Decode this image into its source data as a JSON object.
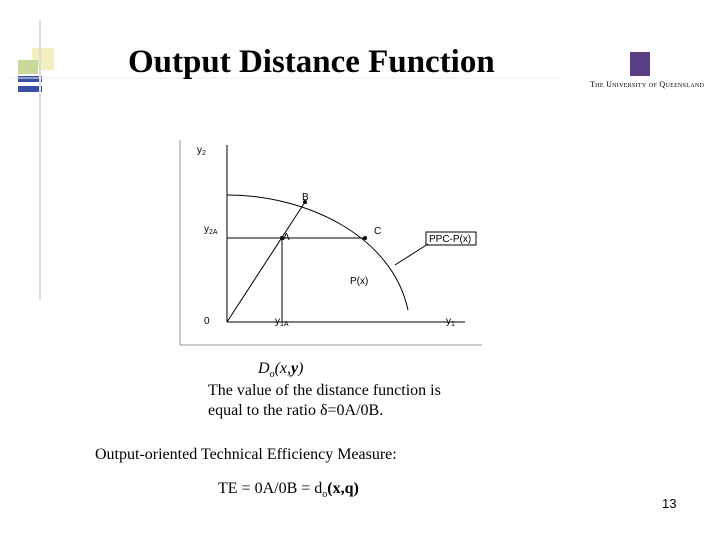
{
  "header": {
    "title": "Output Distance Function",
    "logo": "The University of Queensland"
  },
  "diagram": {
    "y_axis": {
      "base": "y",
      "sub": "2"
    },
    "x_axis": {
      "base": "y",
      "sub": "1"
    },
    "origin": "0",
    "point_b": "B",
    "point_a": "A",
    "point_c": "C",
    "y2a": {
      "base": "y",
      "sub": "2A"
    },
    "y1a": {
      "base": "y",
      "sub": "1A"
    },
    "ppc_label": "PPC-P(x)",
    "set_label": "P(x)"
  },
  "caption": {
    "function": {
      "base": "D",
      "sub": "o",
      "open": "(x,",
      "bold": "y",
      "close": ")"
    },
    "line1": "The value of the distance function is",
    "line2": "equal to the ratio δ=0A/0B."
  },
  "measure": {
    "heading": "Output-oriented Technical Efficiency Measure:",
    "formula": {
      "lhs": "TE = 0A/0B = d",
      "sub": "o",
      "args": "(x,q)"
    }
  },
  "page_number": "13"
}
